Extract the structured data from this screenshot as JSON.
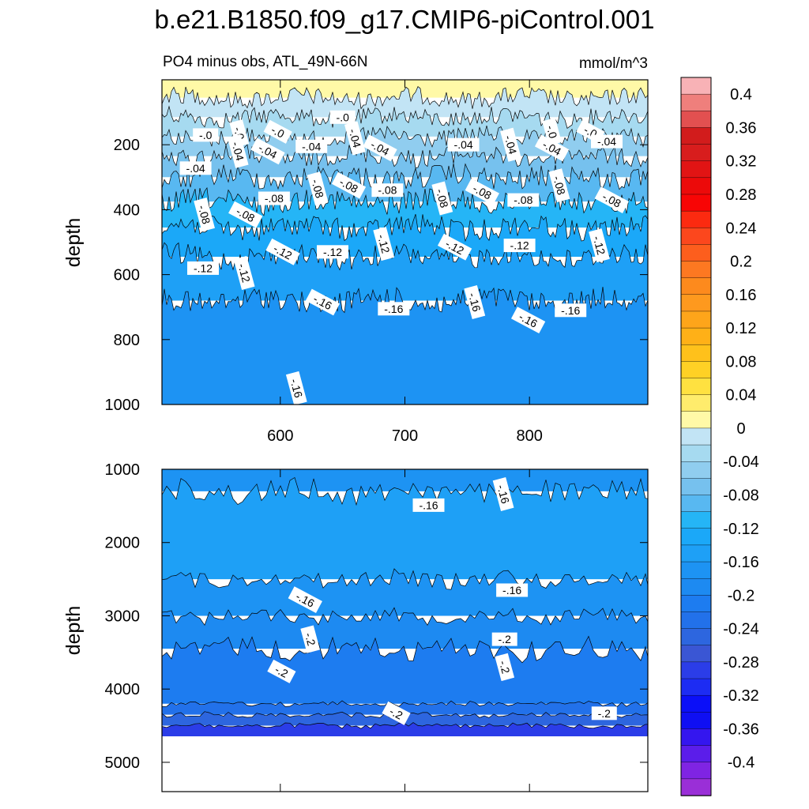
{
  "chart_data": {
    "type": "heatmap",
    "title": "b.e21.B1850.f09_g17.CMIP6-piControl.001",
    "units": "mmol/m^3",
    "x_ticks": [
      "600",
      "700",
      "800"
    ],
    "x_tick_values": [
      600,
      700,
      800
    ],
    "xlim": [
      505,
      895
    ],
    "colorbar": {
      "labels": [
        "0.4",
        "0.36",
        "0.32",
        "0.28",
        "0.24",
        "0.2",
        "0.16",
        "0.12",
        "0.08",
        "0.04",
        "0",
        "-0.04",
        "-0.08",
        "-0.12",
        "-0.16",
        "-0.2",
        "-0.24",
        "-0.28",
        "-0.32",
        "-0.36",
        "-0.4"
      ],
      "levels_top_to_bottom": [
        0.42,
        0.4,
        0.38,
        0.36,
        0.34,
        0.32,
        0.3,
        0.28,
        0.26,
        0.24,
        0.22,
        0.2,
        0.18,
        0.16,
        0.14,
        0.12,
        0.1,
        0.08,
        0.06,
        0.04,
        0.02,
        0.0,
        -0.02,
        -0.04,
        -0.06,
        -0.08,
        -0.1,
        -0.12,
        -0.14,
        -0.16,
        -0.18,
        -0.2,
        -0.22,
        -0.24,
        -0.26,
        -0.28,
        -0.3,
        -0.32,
        -0.34,
        -0.36,
        -0.38,
        -0.4,
        -0.42
      ],
      "colors_top_to_bottom": [
        "#f8b2b6",
        "#ef7f7c",
        "#e25050",
        "#d21c1c",
        "#d81d1d",
        "#e11414",
        "#ec0a0a",
        "#f80505",
        "#fc2a10",
        "#fc471d",
        "#fd5e1d",
        "#fd7821",
        "#fd8a1d",
        "#fe991e",
        "#fea51a",
        "#ffb017",
        "#ffc11b",
        "#ffd125",
        "#ffe140",
        "#ffec6c",
        "#fff9a7",
        "#c2e4f5",
        "#a6daf0",
        "#90cdef",
        "#76c1ee",
        "#58b8f1",
        "#25b5f6",
        "#1ba8f8",
        "#1ea0f6",
        "#1d93f3",
        "#1d8af1",
        "#1d7cf0",
        "#2271ea",
        "#2d66df",
        "#3a56d4",
        "#2b3de8",
        "#1d2cf3",
        "#0b0ff8",
        "#0f0ff3",
        "#3416ef",
        "#5b1dea",
        "#7f24e3",
        "#9a2fd7"
      ]
    },
    "panels": [
      {
        "id": "upper",
        "subtitle": "PO4 minus obs, ATL_49N-66N",
        "units": "mmol/m^3",
        "ylabel": "depth",
        "ylim": [
          0,
          1000
        ],
        "y_ticks": [
          "200",
          "400",
          "600",
          "800",
          "1000"
        ],
        "y_tick_values": [
          200,
          400,
          600,
          800,
          1000
        ],
        "bands": [
          {
            "from": 0,
            "to": 55,
            "value": 0.02
          },
          {
            "from": 55,
            "to": 115,
            "value": 0.0
          },
          {
            "from": 115,
            "to": 175,
            "value": -0.02
          },
          {
            "from": 175,
            "to": 235,
            "value": -0.04
          },
          {
            "from": 235,
            "to": 300,
            "value": -0.06
          },
          {
            "from": 300,
            "to": 375,
            "value": -0.08
          },
          {
            "from": 375,
            "to": 455,
            "value": -0.1
          },
          {
            "from": 455,
            "to": 545,
            "value": -0.12
          },
          {
            "from": 545,
            "to": 680,
            "value": -0.14
          },
          {
            "from": 680,
            "to": 1000,
            "value": -0.16
          }
        ],
        "contour_labels": [
          {
            "x": 540,
            "y": 170,
            "text": "-.0"
          },
          {
            "x": 567,
            "y": 165,
            "text": "-.0"
          },
          {
            "x": 598,
            "y": 160,
            "text": "-.0"
          },
          {
            "x": 650,
            "y": 115,
            "text": "-.0"
          },
          {
            "x": 818,
            "y": 160,
            "text": "-.0"
          },
          {
            "x": 849,
            "y": 160,
            "text": "-.0"
          },
          {
            "x": 532,
            "y": 272,
            "text": "-.04"
          },
          {
            "x": 566,
            "y": 220,
            "text": "-.04"
          },
          {
            "x": 590,
            "y": 220,
            "text": "-.04"
          },
          {
            "x": 625,
            "y": 205,
            "text": "-.04"
          },
          {
            "x": 660,
            "y": 180,
            "text": "-.04"
          },
          {
            "x": 680,
            "y": 210,
            "text": "-.04"
          },
          {
            "x": 747,
            "y": 200,
            "text": "-.04"
          },
          {
            "x": 785,
            "y": 200,
            "text": "-.04"
          },
          {
            "x": 818,
            "y": 210,
            "text": "-.04"
          },
          {
            "x": 862,
            "y": 190,
            "text": "-.04"
          },
          {
            "x": 539,
            "y": 415,
            "text": "-.08"
          },
          {
            "x": 572,
            "y": 415,
            "text": "-.08"
          },
          {
            "x": 595,
            "y": 365,
            "text": "-.08"
          },
          {
            "x": 630,
            "y": 335,
            "text": "-.08"
          },
          {
            "x": 655,
            "y": 325,
            "text": "-.08"
          },
          {
            "x": 686,
            "y": 340,
            "text": "-.08"
          },
          {
            "x": 730,
            "y": 365,
            "text": "-.08"
          },
          {
            "x": 762,
            "y": 345,
            "text": "-.08"
          },
          {
            "x": 795,
            "y": 370,
            "text": "-.08"
          },
          {
            "x": 824,
            "y": 325,
            "text": "-.08"
          },
          {
            "x": 866,
            "y": 370,
            "text": "-.08"
          },
          {
            "x": 538,
            "y": 580,
            "text": "-.12"
          },
          {
            "x": 571,
            "y": 595,
            "text": "-.12"
          },
          {
            "x": 602,
            "y": 530,
            "text": "-.12"
          },
          {
            "x": 642,
            "y": 530,
            "text": "-.12"
          },
          {
            "x": 683,
            "y": 505,
            "text": "-.12"
          },
          {
            "x": 740,
            "y": 515,
            "text": "-.12"
          },
          {
            "x": 792,
            "y": 510,
            "text": "-.12"
          },
          {
            "x": 856,
            "y": 510,
            "text": "-.12"
          },
          {
            "x": 634,
            "y": 685,
            "text": "-.16"
          },
          {
            "x": 691,
            "y": 705,
            "text": "-.16"
          },
          {
            "x": 756,
            "y": 685,
            "text": "-.16"
          },
          {
            "x": 799,
            "y": 740,
            "text": "-.16"
          },
          {
            "x": 833,
            "y": 710,
            "text": "-.16"
          },
          {
            "x": 613,
            "y": 950,
            "text": "-.16"
          }
        ]
      },
      {
        "id": "lower",
        "ylabel": "depth",
        "ylim": [
          1000,
          5400
        ],
        "y_ticks": [
          "1000",
          "2000",
          "3000",
          "4000",
          "5000"
        ],
        "y_tick_values": [
          1000,
          2000,
          3000,
          4000,
          5000
        ],
        "data_bottom": 4650,
        "bands": [
          {
            "from": 1000,
            "to": 1300,
            "value": -0.16
          },
          {
            "from": 1300,
            "to": 2500,
            "value": -0.14
          },
          {
            "from": 2500,
            "to": 3000,
            "value": -0.16
          },
          {
            "from": 3000,
            "to": 3450,
            "value": -0.18
          },
          {
            "from": 3450,
            "to": 4200,
            "value": -0.2
          },
          {
            "from": 4200,
            "to": 4350,
            "value": -0.22
          },
          {
            "from": 4350,
            "to": 4500,
            "value": -0.24
          },
          {
            "from": 4500,
            "to": 4650,
            "value": -0.28
          }
        ],
        "contour_labels": [
          {
            "x": 719,
            "y": 1490,
            "text": "-.16"
          },
          {
            "x": 779,
            "y": 1340,
            "text": "-.16"
          },
          {
            "x": 620,
            "y": 2780,
            "text": "-.16"
          },
          {
            "x": 786,
            "y": 2650,
            "text": "-.16"
          },
          {
            "x": 624,
            "y": 3320,
            "text": "-.2"
          },
          {
            "x": 601,
            "y": 3760,
            "text": "-.2"
          },
          {
            "x": 780,
            "y": 3320,
            "text": "-.2"
          },
          {
            "x": 780,
            "y": 3700,
            "text": "-.2"
          },
          {
            "x": 693,
            "y": 4330,
            "text": "-.2"
          },
          {
            "x": 860,
            "y": 4330,
            "text": "-.2"
          }
        ]
      }
    ]
  }
}
